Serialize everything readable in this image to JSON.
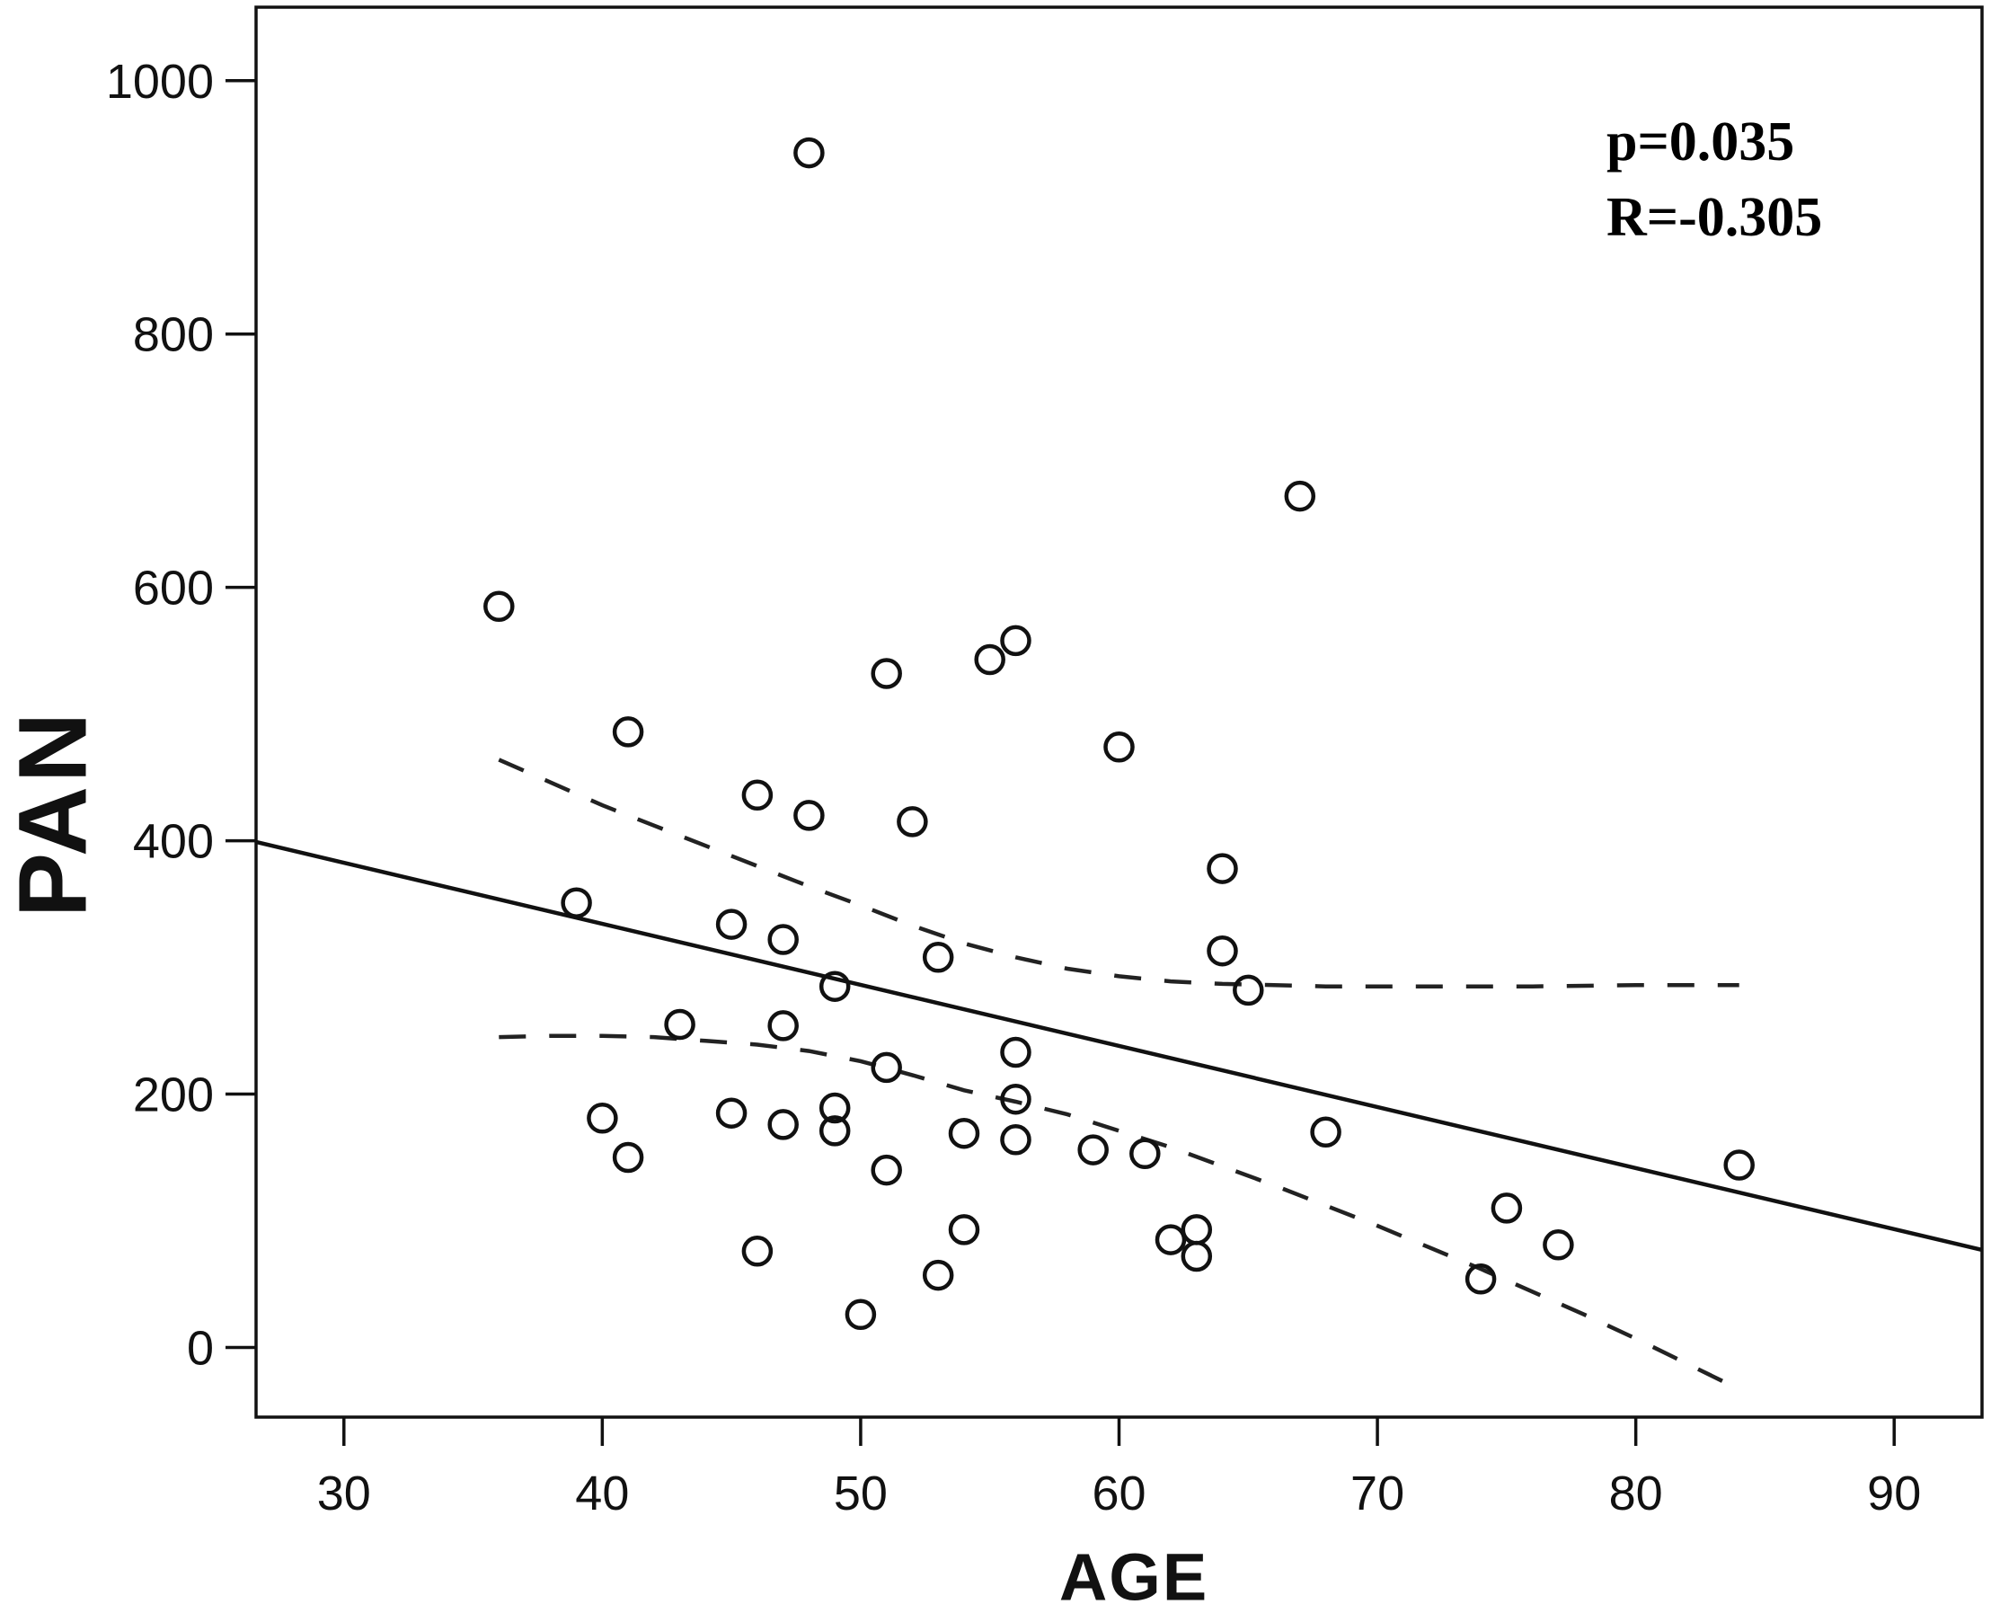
{
  "axes": {
    "x_label": "AGE",
    "y_label": "PAN"
  },
  "annotation": {
    "line1": "p=0.035",
    "line2": "R=-0.305"
  },
  "chart_data": {
    "type": "scatter",
    "title": "",
    "xlabel": "AGE",
    "ylabel": "PAN",
    "annotation": [
      "p=0.035",
      "R=-0.305"
    ],
    "x_ticks": [
      30,
      40,
      50,
      60,
      70,
      80,
      90
    ],
    "y_ticks": [
      0,
      200,
      400,
      600,
      800,
      1000
    ],
    "xlim": [
      26.6,
      93.4
    ],
    "ylim": [
      -55,
      1058
    ],
    "grid": false,
    "legend": "none",
    "marker_style": "open-circle",
    "points": [
      [
        48,
        943
      ],
      [
        36,
        585
      ],
      [
        67,
        672
      ],
      [
        41,
        486
      ],
      [
        51,
        532
      ],
      [
        55,
        543
      ],
      [
        56,
        558
      ],
      [
        60,
        474
      ],
      [
        46,
        436
      ],
      [
        48,
        420
      ],
      [
        52,
        415
      ],
      [
        39,
        351
      ],
      [
        45,
        334
      ],
      [
        47,
        322
      ],
      [
        53,
        308
      ],
      [
        64,
        378
      ],
      [
        64,
        313
      ],
      [
        65,
        282
      ],
      [
        49,
        285
      ],
      [
        43,
        255
      ],
      [
        47,
        254
      ],
      [
        51,
        221
      ],
      [
        56,
        233
      ],
      [
        56,
        196
      ],
      [
        40,
        181
      ],
      [
        41,
        150
      ],
      [
        45,
        185
      ],
      [
        47,
        176
      ],
      [
        49,
        189
      ],
      [
        49,
        171
      ],
      [
        51,
        140
      ],
      [
        54,
        169
      ],
      [
        56,
        164
      ],
      [
        59,
        156
      ],
      [
        61,
        153
      ],
      [
        68,
        170
      ],
      [
        62,
        85
      ],
      [
        63,
        93
      ],
      [
        63,
        72
      ],
      [
        54,
        93
      ],
      [
        46,
        76
      ],
      [
        53,
        57
      ],
      [
        50,
        26
      ],
      [
        84,
        144
      ],
      [
        75,
        110
      ],
      [
        77,
        81
      ],
      [
        74,
        54
      ]
    ],
    "regression_line": {
      "x1": 26.6,
      "y1": 399,
      "x2": 93.4,
      "y2": 77
    },
    "ci_upper": [
      [
        36,
        464
      ],
      [
        38,
        446
      ],
      [
        40,
        428
      ],
      [
        42,
        412
      ],
      [
        44,
        396
      ],
      [
        46,
        380
      ],
      [
        48,
        364
      ],
      [
        50,
        349
      ],
      [
        52,
        333
      ],
      [
        54,
        319
      ],
      [
        56,
        308
      ],
      [
        58,
        299
      ],
      [
        60,
        293
      ],
      [
        62,
        289
      ],
      [
        64,
        287
      ],
      [
        66,
        286
      ],
      [
        68,
        285
      ],
      [
        72,
        285
      ],
      [
        76,
        285
      ],
      [
        80,
        286
      ],
      [
        84,
        286
      ]
    ],
    "ci_lower": [
      [
        36,
        245
      ],
      [
        38,
        246
      ],
      [
        40,
        246
      ],
      [
        42,
        245
      ],
      [
        44,
        242
      ],
      [
        46,
        239
      ],
      [
        48,
        234
      ],
      [
        50,
        226
      ],
      [
        52,
        215
      ],
      [
        54,
        203
      ],
      [
        56,
        194
      ],
      [
        58,
        184
      ],
      [
        60,
        171
      ],
      [
        62,
        158
      ],
      [
        64,
        143
      ],
      [
        66,
        128
      ],
      [
        68,
        112
      ],
      [
        70,
        96
      ],
      [
        72,
        79
      ],
      [
        74,
        62
      ],
      [
        76,
        44
      ],
      [
        78,
        26
      ],
      [
        80,
        7
      ],
      [
        82,
        -13
      ],
      [
        84,
        -33
      ]
    ],
    "colors": {
      "axis": "#111111",
      "marker": "#111111",
      "regression_line": "#111111",
      "ci_line": "#222222",
      "background": "#ffffff",
      "text": "#111111"
    }
  }
}
